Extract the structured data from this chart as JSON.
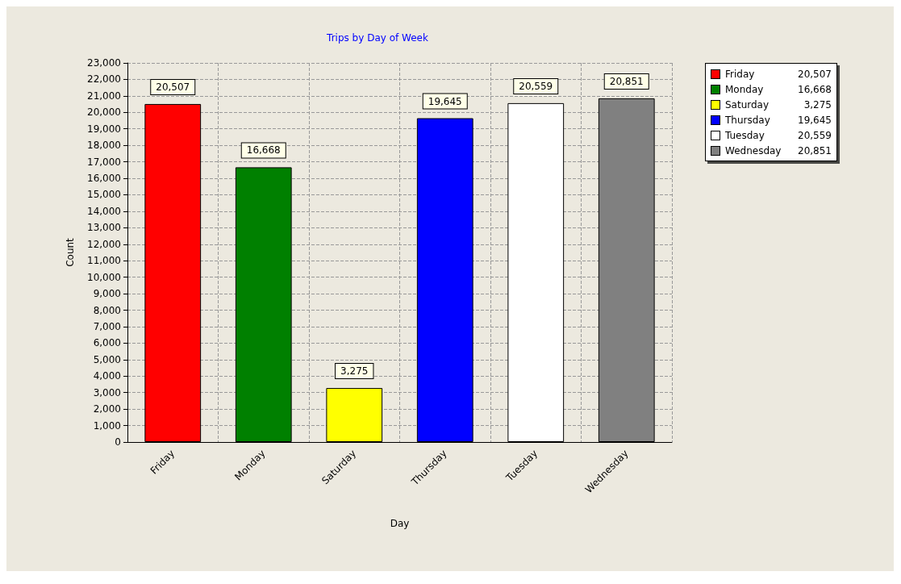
{
  "chart_data": {
    "type": "bar",
    "title": "Trips by Day of Week",
    "xlabel": "Day",
    "ylabel": "Count",
    "categories": [
      "Friday",
      "Monday",
      "Saturday",
      "Thursday",
      "Tuesday",
      "Wednesday"
    ],
    "values": [
      20507,
      16668,
      3275,
      19645,
      20559,
      20851
    ],
    "value_labels": [
      "20,507",
      "16,668",
      "3,275",
      "19,645",
      "20,559",
      "20,851"
    ],
    "colors": [
      "#ff0000",
      "#008000",
      "#ffff00",
      "#0000ff",
      "#ffffff",
      "#808080"
    ],
    "ylim": [
      0,
      23000
    ],
    "yticks": [
      0,
      {
        "value": 1000,
        "label": "1,000"
      },
      {
        "value": 2000,
        "label": "2,000"
      },
      {
        "value": 3000,
        "label": "3,000"
      },
      {
        "value": 4000,
        "label": "4,000"
      },
      {
        "value": 5000,
        "label": "5,000"
      },
      {
        "value": 6000,
        "label": "6,000"
      },
      {
        "value": 7000,
        "label": "7,000"
      },
      {
        "value": 8000,
        "label": "8,000"
      },
      {
        "value": 9000,
        "label": "9,000"
      },
      {
        "value": 10000,
        "label": "10,000"
      },
      {
        "value": 11000,
        "label": "11,000"
      },
      {
        "value": 12000,
        "label": "12,000"
      },
      {
        "value": 13000,
        "label": "13,000"
      },
      {
        "value": 14000,
        "label": "14,000"
      },
      {
        "value": 15000,
        "label": "15,000"
      },
      {
        "value": 16000,
        "label": "16,000"
      },
      {
        "value": 17000,
        "label": "17,000"
      },
      {
        "value": 18000,
        "label": "18,000"
      },
      {
        "value": 19000,
        "label": "19,000"
      },
      {
        "value": 20000,
        "label": "20,000"
      },
      {
        "value": 21000,
        "label": "21,000"
      },
      {
        "value": 22000,
        "label": "22,000"
      },
      {
        "value": 23000,
        "label": "23,000"
      }
    ],
    "grid": true
  }
}
